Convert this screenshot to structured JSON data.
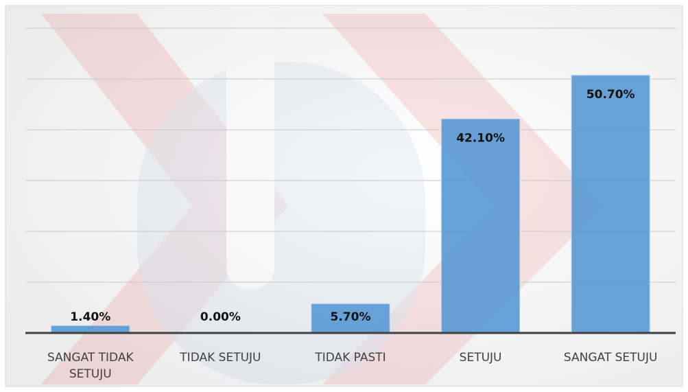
{
  "chart_data": {
    "type": "bar",
    "categories": [
      "SANGAT TIDAK SETUJU",
      "TIDAK SETUJU",
      "TIDAK PASTI",
      "SETUJU",
      "SANGAT SETUJU"
    ],
    "values": [
      1.4,
      0,
      5.7,
      42.1,
      50.7
    ],
    "value_labels": [
      "1.40%",
      "0.00%",
      "5.70%",
      "42.10%",
      "50.70%"
    ],
    "color": "#5b9bd5",
    "ylim": [
      0,
      60
    ],
    "yticks": [
      0,
      10,
      20,
      30,
      40,
      50,
      60
    ],
    "grid": true
  }
}
